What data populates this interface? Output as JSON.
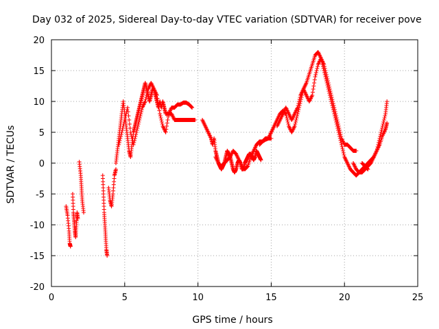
{
  "chart_data": {
    "type": "scatter",
    "title": "Day 032 of 2025, Sidereal Day-to-day VTEC variation (SDTVAR) for receiver pove",
    "xlabel": "GPS time / hours",
    "ylabel": "SDTVAR / TECUs",
    "xlim": [
      0,
      25
    ],
    "ylim": [
      -20,
      20
    ],
    "xticks": [
      0,
      5,
      10,
      15,
      20,
      25
    ],
    "yticks": [
      -20,
      -15,
      -10,
      -5,
      0,
      5,
      10,
      15,
      20
    ],
    "grid": true,
    "marker": "+",
    "color": "#ff0000",
    "series": [
      {
        "name": "SDTVAR",
        "segments": [
          {
            "x": [
              1.0,
              1.1,
              1.2,
              1.25,
              1.3
            ],
            "y": [
              -7,
              -8.5,
              -11,
              -13,
              -13.5
            ]
          },
          {
            "x": [
              1.45,
              1.5,
              1.55,
              1.6,
              1.65,
              1.7,
              1.75,
              1.8
            ],
            "y": [
              -5,
              -8,
              -9.5,
              -11,
              -12,
              -10,
              -8,
              -9
            ]
          },
          {
            "x": [
              1.9,
              2.0,
              2.05,
              2.1,
              2.2
            ],
            "y": [
              0.2,
              -2,
              -4,
              -6,
              -8
            ]
          },
          {
            "x": [
              3.5,
              3.55,
              3.6,
              3.65,
              3.7,
              3.75,
              3.8
            ],
            "y": [
              -2,
              -5,
              -8,
              -10,
              -12,
              -14,
              -15
            ]
          },
          {
            "x": [
              3.9,
              4.0,
              4.1,
              4.2,
              4.3,
              4.4
            ],
            "y": [
              -4,
              -6,
              -7,
              -5,
              -2,
              -1
            ]
          },
          {
            "x": [
              4.4,
              4.5,
              4.6,
              4.7,
              4.8,
              4.9,
              5.0,
              5.1,
              5.2,
              5.3,
              5.4,
              5.5,
              5.6,
              5.7,
              5.8,
              5.9,
              6.0,
              6.1,
              6.2,
              6.3,
              6.4,
              6.5,
              6.6,
              6.7,
              6.8,
              6.9,
              7.0,
              7.1,
              7.2,
              7.3,
              7.4,
              7.5,
              7.6,
              7.7,
              7.8,
              7.9,
              8.0,
              8.2,
              8.4,
              8.6,
              8.8,
              9.0,
              9.2,
              9.4,
              9.6,
              9.8
            ],
            "y": [
              0,
              2,
              4,
              6,
              8,
              10,
              8,
              6,
              4,
              2,
              1,
              3,
              5,
              6,
              7,
              8,
              9,
              10,
              11,
              12,
              13,
              12,
              11,
              10,
              11,
              12,
              12,
              11,
              10,
              9,
              10,
              9,
              10,
              9,
              8,
              8,
              8,
              8,
              7,
              7,
              7,
              7,
              7,
              7,
              7,
              7
            ]
          },
          {
            "x": [
              4.6,
              4.8,
              5.0,
              5.2,
              5.4,
              5.6,
              5.8,
              6.0,
              6.2,
              6.4,
              6.6,
              6.8,
              7.0,
              7.2,
              7.4,
              7.6,
              7.8,
              8.0,
              8.2,
              8.4,
              8.6,
              8.8,
              9.0,
              9.2,
              9.4,
              9.6
            ],
            "y": [
              3,
              5,
              7,
              9,
              5,
              3,
              5,
              7,
              9,
              10,
              12,
              13,
              12,
              11,
              8,
              6,
              5,
              8,
              9,
              9,
              9.5,
              9.5,
              9.8,
              9.8,
              9.5,
              9
            ]
          },
          {
            "x": [
              10.3,
              10.5,
              10.7,
              10.9,
              11.0,
              11.1,
              11.2,
              11.3,
              11.4,
              11.5,
              11.6,
              11.7,
              11.8,
              11.9,
              12.0,
              12.1,
              12.2,
              12.3,
              12.4,
              12.5,
              12.6,
              12.7,
              12.8,
              12.9,
              13.0,
              13.1,
              13.2,
              13.3,
              13.4,
              13.5,
              13.6,
              13.7,
              13.8,
              13.9,
              14.0,
              14.1,
              14.2,
              14.3
            ],
            "y": [
              7,
              6,
              5,
              4,
              3,
              4,
              2,
              1,
              0,
              -0.5,
              -1,
              -0.5,
              0,
              1,
              2,
              1.5,
              1,
              0,
              -1,
              -1.5,
              -1,
              0,
              0.5,
              0,
              -1,
              -1,
              0,
              0.5,
              1,
              1.5,
              1.5,
              1,
              0.5,
              1,
              2,
              1.5,
              1,
              0.5
            ]
          },
          {
            "x": [
              11.2,
              11.4,
              11.6,
              11.8,
              12.0,
              12.2,
              12.4,
              12.6,
              12.8,
              13.0,
              13.2,
              13.4,
              13.6,
              13.8,
              14.0,
              14.2,
              14.4,
              14.6,
              14.8,
              15.0
            ],
            "y": [
              1,
              0,
              -0.5,
              0,
              0.5,
              1,
              2,
              1.5,
              0.5,
              -0.5,
              -1,
              -0.5,
              1,
              2,
              3,
              3.5,
              3.5,
              3.8,
              4,
              4
            ]
          },
          {
            "x": [
              14.2,
              14.4,
              14.6,
              14.8,
              15.0,
              15.2,
              15.4,
              15.6,
              15.8,
              16.0,
              16.2,
              16.4,
              16.6,
              16.8,
              17.0,
              17.2,
              17.4,
              17.6,
              17.8,
              18.0,
              18.2,
              18.4,
              18.6,
              18.8,
              19.0,
              19.2,
              19.4,
              19.6,
              19.8,
              20.0,
              20.2,
              20.4,
              20.6,
              20.8,
              21.0,
              21.2,
              21.4,
              21.6
            ],
            "y": [
              3,
              3.5,
              4,
              4,
              5,
              6,
              7,
              8,
              8.5,
              8,
              6,
              5,
              6,
              8,
              10,
              12,
              13,
              14.5,
              16,
              17.5,
              18,
              17,
              15,
              13,
              11,
              9,
              7,
              5,
              3,
              1,
              0,
              -1,
              -1.5,
              -2,
              -1.5,
              -1,
              -0.5,
              -1
            ]
          },
          {
            "x": [
              15.4,
              15.6,
              15.8,
              16.0,
              16.2,
              16.4,
              16.6,
              16.8,
              17.0,
              17.2,
              17.4,
              17.6,
              17.8,
              18.0,
              18.2,
              18.4,
              18.6,
              18.8,
              19.0,
              19.2,
              19.4,
              19.6,
              19.8,
              20.0,
              20.2,
              20.4,
              20.6,
              20.8
            ],
            "y": [
              6,
              7,
              8,
              9,
              8,
              7,
              8,
              9,
              11,
              12,
              11,
              10,
              11,
              14,
              16,
              17,
              16,
              14,
              12,
              10,
              8,
              6,
              4,
              3,
              3,
              2.5,
              2,
              2
            ]
          },
          {
            "x": [
              20.6,
              20.8,
              21.0,
              21.2,
              21.4,
              21.6,
              21.8,
              22.0,
              22.2,
              22.4,
              22.6,
              22.8,
              22.9
            ],
            "y": [
              0,
              -1,
              -1.5,
              -1.5,
              -1,
              -0.5,
              0,
              1,
              2,
              4,
              6,
              8,
              10
            ]
          },
          {
            "x": [
              21.2,
              21.4,
              21.6,
              21.8,
              22.0,
              22.2,
              22.4,
              22.6,
              22.8,
              22.9
            ],
            "y": [
              0,
              -0.5,
              0,
              0.5,
              1,
              2,
              3,
              4.5,
              5.5,
              6.5
            ]
          }
        ]
      }
    ]
  }
}
